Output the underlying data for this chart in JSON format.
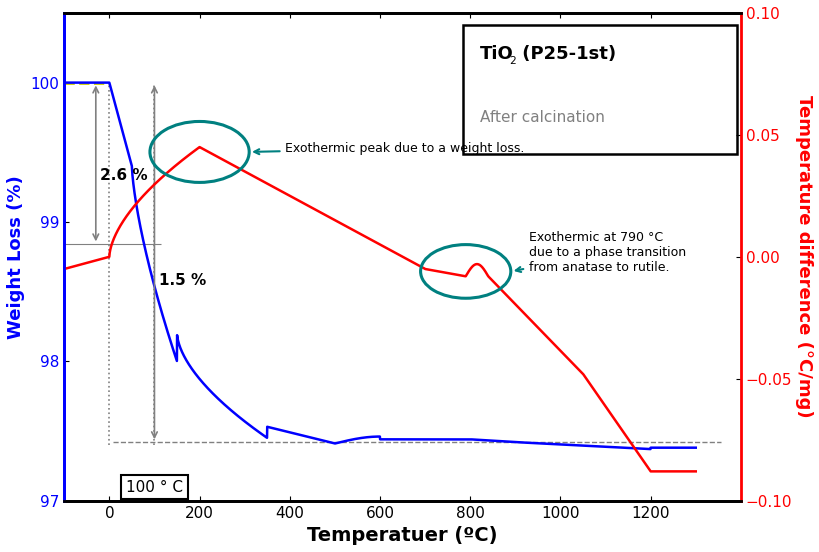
{
  "xlabel": "Temperatuer (ºC)",
  "ylabel_left": "Weight Loss (%)",
  "ylabel_right": "Temperature difference (°C/mg)",
  "xlim": [
    -100,
    1400
  ],
  "ylim_left": [
    97,
    100.5
  ],
  "ylim_right": [
    -0.1,
    0.1
  ],
  "xticks": [
    0,
    200,
    400,
    600,
    800,
    1000,
    1200
  ],
  "yticks_left": [
    97,
    98,
    99,
    100
  ],
  "yticks_right": [
    -0.1,
    -0.05,
    0.0,
    0.05,
    0.1
  ],
  "annotation1": "Exothermic peak due to a weight loss.",
  "annotation2": "Exothermic at 790 °C\ndue to a phase transition\nfrom anatase to rutile.",
  "label_100C": "100 ° C",
  "label_26": "2.6 %",
  "label_15": "1.5 %",
  "dashed_level": 97.42,
  "blue_color": "#0000FF",
  "red_color": "#FF0000",
  "teal_color": "#008080",
  "frame_color": "#000000"
}
